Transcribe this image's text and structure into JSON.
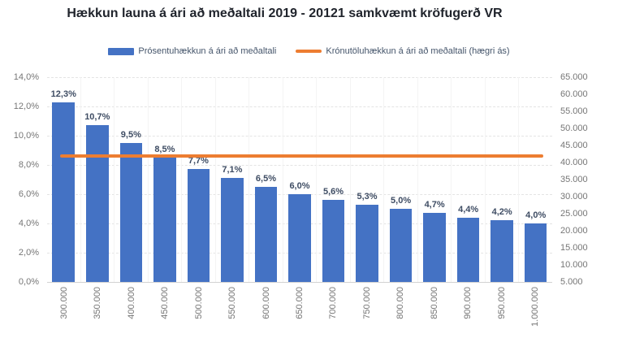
{
  "chart_data": {
    "type": "bar",
    "title": "Hækkun launa á ári að meðaltali 2019 - 20121 samkvæmt kröfugerð VR",
    "categories": [
      "300.000",
      "350.000",
      "400.000",
      "450.000",
      "500.000",
      "550.000",
      "600.000",
      "650.000",
      "700.000",
      "750.000",
      "800.000",
      "850.000",
      "900.000",
      "950.000",
      "1.000.000"
    ],
    "series": [
      {
        "name": "Prósentuhækkun á ári að meðaltali",
        "type": "bar",
        "axis": "left",
        "color": "#4472C4",
        "values": [
          12.3,
          10.7,
          9.5,
          8.5,
          7.7,
          7.1,
          6.5,
          6.0,
          5.6,
          5.3,
          5.0,
          4.7,
          4.4,
          4.2,
          4.0
        ],
        "data_labels": [
          "12,3%",
          "10,7%",
          "9,5%",
          "8,5%",
          "7,7%",
          "7,1%",
          "6,5%",
          "6,0%",
          "5,6%",
          "5,3%",
          "5,0%",
          "4,7%",
          "4,4%",
          "4,2%",
          "4,0%"
        ]
      },
      {
        "name": "Krónutöluhækkun á ári að meðaltali (hægri ás)",
        "type": "line",
        "axis": "right",
        "color": "#ED7D31",
        "values": [
          42000,
          42000,
          42000,
          42000,
          42000,
          42000,
          42000,
          42000,
          42000,
          42000,
          42000,
          42000,
          42000,
          42000,
          42000
        ]
      }
    ],
    "left_axis": {
      "min": 0,
      "max": 14,
      "tick_labels": [
        "14,0%",
        "12,0%",
        "10,0%",
        "8,0%",
        "6,0%",
        "4,0%",
        "2,0%",
        "0,0%"
      ],
      "tick_values": [
        14,
        12,
        10,
        8,
        6,
        4,
        2,
        0
      ]
    },
    "right_axis": {
      "min": 5000,
      "max": 65000,
      "tick_labels": [
        "65.000",
        "60.000",
        "55.000",
        "50.000",
        "45.000",
        "40.000",
        "35.000",
        "30.000",
        "25.000",
        "20.000",
        "15.000",
        "10.000",
        "5.000"
      ],
      "tick_values": [
        65000,
        60000,
        55000,
        50000,
        45000,
        40000,
        35000,
        30000,
        25000,
        20000,
        15000,
        10000,
        5000
      ]
    },
    "grid": true,
    "legend_position": "top",
    "x_tick_rotation": -90
  }
}
